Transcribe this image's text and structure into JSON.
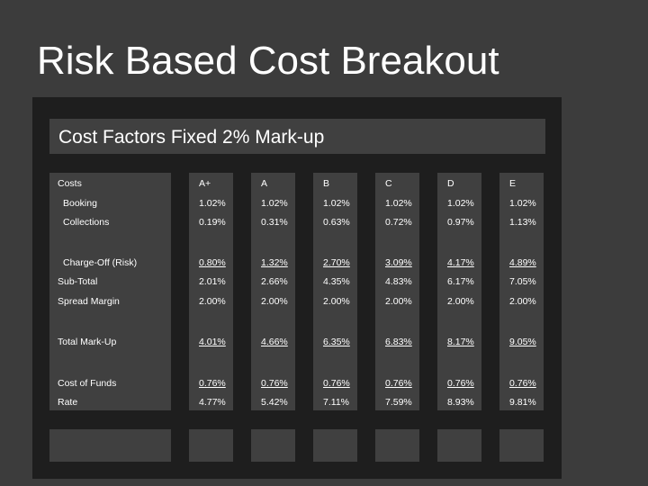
{
  "title": "Risk Based Cost Breakout",
  "panel_title": "Cost Factors Fixed 2% Mark-up",
  "table": {
    "headers": [
      "Costs",
      "A+",
      "A",
      "B",
      "C",
      "D",
      "E"
    ],
    "rows": [
      {
        "label": "Booking",
        "values": [
          "1.02%",
          "1.02%",
          "1.02%",
          "1.02%",
          "1.02%",
          "1.02%"
        ]
      },
      {
        "label": "Collections",
        "values": [
          "0.19%",
          "0.31%",
          "0.63%",
          "0.72%",
          "0.97%",
          "1.13%"
        ]
      },
      {
        "label": "Charge-Off (Risk)",
        "values": [
          "0.80%",
          "1.32%",
          "2.70%",
          "3.09%",
          "4.17%",
          "4.89%"
        ]
      },
      {
        "label": "Sub-Total",
        "values": [
          "2.01%",
          "2.66%",
          "4.35%",
          "4.83%",
          "6.17%",
          "7.05%"
        ]
      },
      {
        "label": "Spread Margin",
        "values": [
          "2.00%",
          "2.00%",
          "2.00%",
          "2.00%",
          "2.00%",
          "2.00%"
        ]
      },
      {
        "label": "Total Mark-Up",
        "values": [
          "4.01%",
          "4.66%",
          "6.35%",
          "6.83%",
          "8.17%",
          "9.05%"
        ]
      },
      {
        "label": "Cost of Funds",
        "values": [
          "0.76%",
          "0.76%",
          "0.76%",
          "0.76%",
          "0.76%",
          "0.76%"
        ]
      },
      {
        "label": "Rate",
        "values": [
          "4.77%",
          "5.42%",
          "7.11%",
          "7.59%",
          "8.93%",
          "9.81%"
        ]
      }
    ]
  }
}
